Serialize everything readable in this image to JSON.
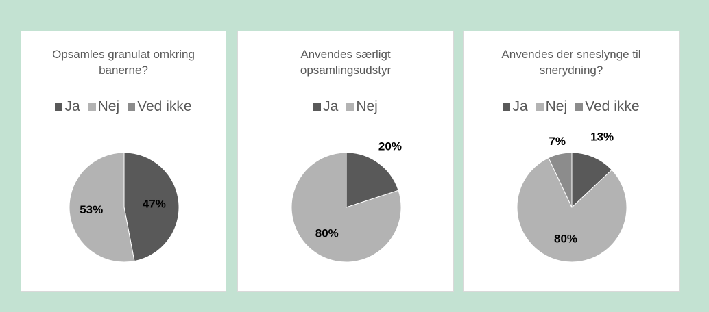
{
  "chart_data": [
    {
      "type": "pie",
      "title": "Opsamles granulat omkring banerne?",
      "categories": [
        "Ja",
        "Nej",
        "Ved ikke"
      ],
      "values": [
        47,
        53,
        0
      ],
      "value_labels": [
        "47%",
        "53%",
        null
      ],
      "colors": [
        "#595959",
        "#b3b3b3",
        "#8c8c8c"
      ],
      "legend": "top"
    },
    {
      "type": "pie",
      "title": "Anvendes særligt opsamlingsudstyr",
      "categories": [
        "Ja",
        "Nej"
      ],
      "values": [
        20,
        80
      ],
      "value_labels": [
        "20%",
        "80%"
      ],
      "colors": [
        "#595959",
        "#b3b3b3"
      ],
      "legend": "top"
    },
    {
      "type": "pie",
      "title": "Anvendes der sneslynge til snerydning?",
      "categories": [
        "Ja",
        "Nej",
        "Ved ikke"
      ],
      "values": [
        13,
        80,
        7
      ],
      "value_labels": [
        "13%",
        "80%",
        "7%"
      ],
      "colors": [
        "#595959",
        "#b3b3b3",
        "#8c8c8c"
      ],
      "legend": "top"
    }
  ]
}
